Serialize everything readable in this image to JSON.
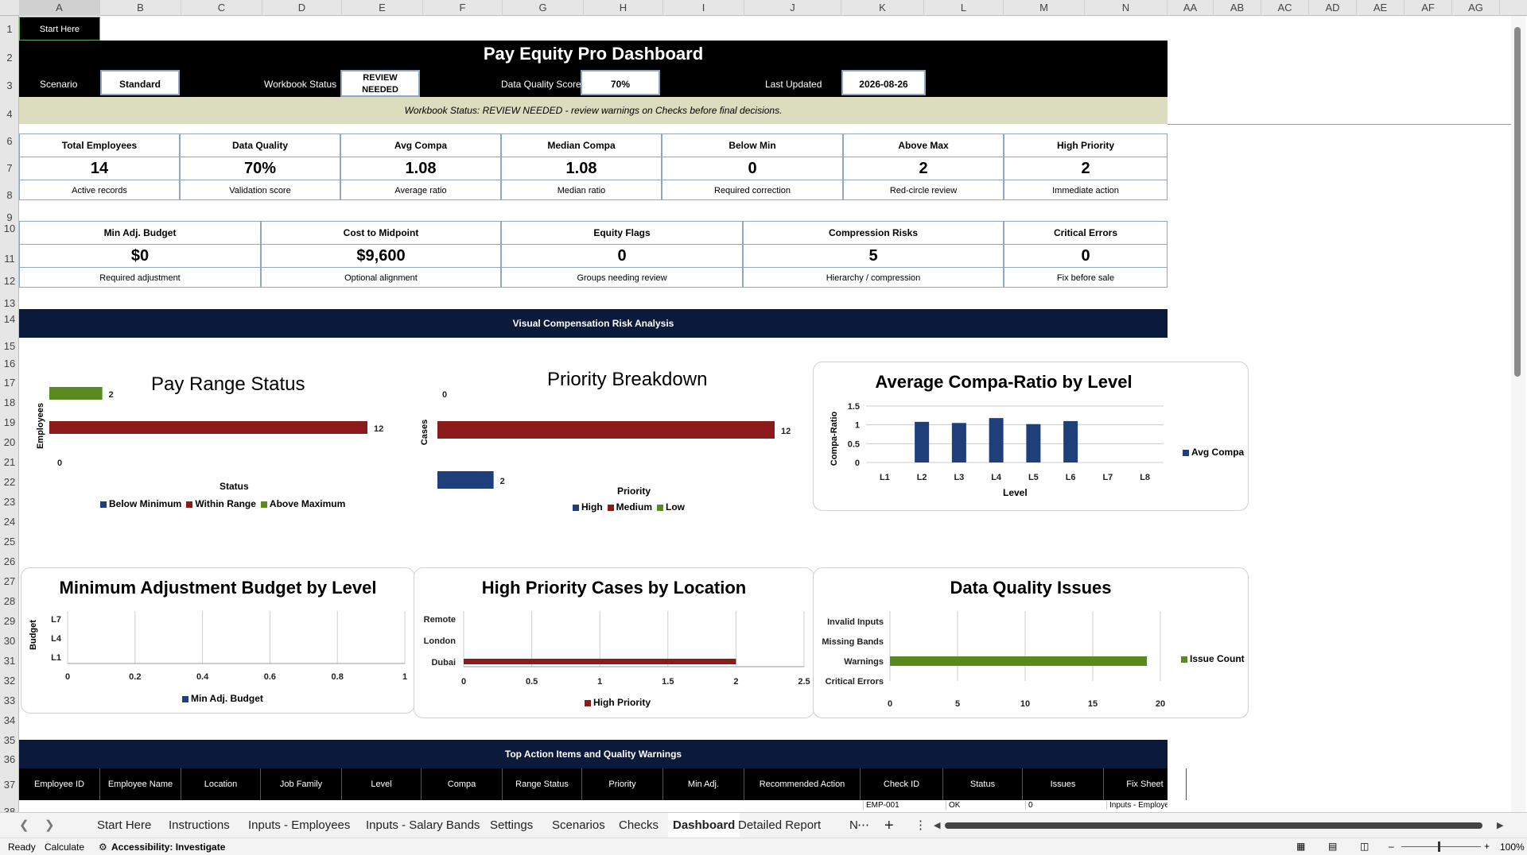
{
  "columns": [
    "A",
    "B",
    "C",
    "D",
    "E",
    "F",
    "G",
    "H",
    "I",
    "J",
    "K",
    "L",
    "M",
    "N",
    "AA",
    "AB",
    "AC",
    "AD",
    "AE",
    "AF",
    "AG"
  ],
  "rows": [
    "1",
    "2",
    "3",
    "4",
    "6",
    "7",
    "8",
    "9",
    "10",
    "11",
    "12",
    "13",
    "14",
    "15",
    "16",
    "17",
    "18",
    "19",
    "20",
    "21",
    "22",
    "23",
    "24",
    "25",
    "26",
    "27",
    "28",
    "29",
    "30",
    "31",
    "32",
    "33",
    "34",
    "35",
    "36",
    "37",
    "38"
  ],
  "start_button": "Start Here",
  "header": {
    "title": "Pay Equity Pro Dashboard",
    "scenario_label": "Scenario",
    "scenario_value": "Standard",
    "status_label": "Workbook Status",
    "status_value": "REVIEW NEEDED",
    "dq_label": "Data Quality Score",
    "dq_value": "70%",
    "updated_label": "Last Updated",
    "updated_value": "2026-08-26",
    "banner": "Workbook Status: REVIEW NEEDED - review warnings on Checks before final decisions."
  },
  "kpis_row1": [
    {
      "title": "Total Employees",
      "value": "14",
      "sub": "Active records"
    },
    {
      "title": "Data Quality",
      "value": "70%",
      "sub": "Validation score"
    },
    {
      "title": "Avg Compa",
      "value": "1.08",
      "sub": "Average ratio"
    },
    {
      "title": "Median Compa",
      "value": "1.08",
      "sub": "Median ratio"
    },
    {
      "title": "Below Min",
      "value": "0",
      "sub": "Required correction"
    },
    {
      "title": "Above Max",
      "value": "2",
      "sub": "Red-circle review"
    },
    {
      "title": "High Priority",
      "value": "2",
      "sub": "Immediate action"
    }
  ],
  "kpis_row2": [
    {
      "title": "Min Adj. Budget",
      "value": "$0",
      "sub": "Required adjustment"
    },
    {
      "title": "Cost to Midpoint",
      "value": "$9,600",
      "sub": "Optional alignment"
    },
    {
      "title": "Equity Flags",
      "value": "0",
      "sub": "Groups needing review"
    },
    {
      "title": "Compression Risks",
      "value": "5",
      "sub": "Hierarchy / compression"
    },
    {
      "title": "Critical Errors",
      "value": "0",
      "sub": "Fix before sale"
    }
  ],
  "visual_section": "Visual Compensation Risk Analysis",
  "action_section": "Top Action Items and Quality Warnings",
  "table": {
    "headers": [
      "Employee ID",
      "Employee Name",
      "Location",
      "Job Family",
      "Level",
      "Compa",
      "Range Status",
      "Priority",
      "Min Adj.",
      "Recommended Action",
      "Check ID",
      "Status",
      "Issues",
      "Fix Sheet"
    ],
    "partial_row": [
      "EMP-001",
      "OK",
      "0",
      "Inputs - Employees"
    ]
  },
  "chart_data": [
    {
      "type": "bar",
      "title": "Pay Range Status",
      "xlabel": "Status",
      "ylabel": "Employees",
      "categories": [
        "Below Minimum",
        "Within Range",
        "Above Maximum"
      ],
      "values": [
        0,
        12,
        2
      ],
      "colors": [
        "#1f3f7a",
        "#8b1a1a",
        "#5a8a1f"
      ],
      "legend": [
        "Below Minimum",
        "Within Range",
        "Above Maximum"
      ],
      "legend_position": "bottom"
    },
    {
      "type": "bar",
      "title": "Priority Breakdown",
      "xlabel": "Priority",
      "ylabel": "Cases",
      "categories": [
        "High",
        "Medium",
        "Low"
      ],
      "values": [
        2,
        12,
        0
      ],
      "colors": [
        "#1f3f7a",
        "#8b1a1a",
        "#5a8a1f"
      ],
      "legend": [
        "High",
        "Medium",
        "Low"
      ],
      "legend_position": "bottom"
    },
    {
      "type": "bar",
      "title": "Average Compa-Ratio by Level",
      "xlabel": "Level",
      "ylabel": "Compa-Ratio",
      "categories": [
        "L1",
        "L2",
        "L3",
        "L4",
        "L5",
        "L6",
        "L7",
        "L8"
      ],
      "series": [
        {
          "name": "Avg Compa",
          "values": [
            0,
            1.08,
            1.05,
            1.18,
            1.02,
            1.1,
            0,
            0
          ]
        }
      ],
      "yticks": [
        "0",
        "0.5",
        "1",
        "1.5"
      ],
      "ylim": [
        0,
        1.5
      ],
      "color": "#1f3f7a",
      "legend_position": "right"
    },
    {
      "type": "bar",
      "title": "Minimum Adjustment Budget by Level",
      "ylabel": "Budget",
      "categories": [
        "L1",
        "L4",
        "L7"
      ],
      "series": [
        {
          "name": "Min Adj. Budget",
          "values": [
            0,
            0,
            0
          ]
        }
      ],
      "xticks": [
        "0",
        "0.2",
        "0.4",
        "0.6",
        "0.8",
        "1"
      ],
      "xlim": [
        0,
        1
      ],
      "color": "#1f3f7a",
      "legend_position": "bottom"
    },
    {
      "type": "bar",
      "title": "High Priority Cases by Location",
      "categories": [
        "Dubai",
        "London",
        "Remote"
      ],
      "series": [
        {
          "name": "High Priority",
          "values": [
            2,
            0,
            0
          ]
        }
      ],
      "xticks": [
        "0",
        "0.5",
        "1",
        "1.5",
        "2",
        "2.5"
      ],
      "xlim": [
        0,
        2.5
      ],
      "color": "#8b1a1a",
      "legend_position": "bottom"
    },
    {
      "type": "bar",
      "title": "Data Quality Issues",
      "categories": [
        "Critical Errors",
        "Warnings",
        "Missing Bands",
        "Invalid Inputs"
      ],
      "series": [
        {
          "name": "Issue Count",
          "values": [
            0,
            19,
            0,
            0
          ]
        }
      ],
      "xticks": [
        "0",
        "5",
        "10",
        "15",
        "20"
      ],
      "xlim": [
        0,
        20
      ],
      "color": "#5a8a1f",
      "legend_position": "right"
    }
  ],
  "sheet_tabs": [
    "Start Here",
    "Instructions",
    "Inputs - Employees",
    "Inputs - Salary Bands",
    "Settings",
    "Scenarios",
    "Checks",
    "Dashboard",
    "Detailed Report",
    "N"
  ],
  "active_tab": "Dashboard",
  "statusbar": {
    "ready": "Ready",
    "calculate": "Calculate",
    "accessibility": "Accessibility: Investigate",
    "zoom": "100%"
  }
}
